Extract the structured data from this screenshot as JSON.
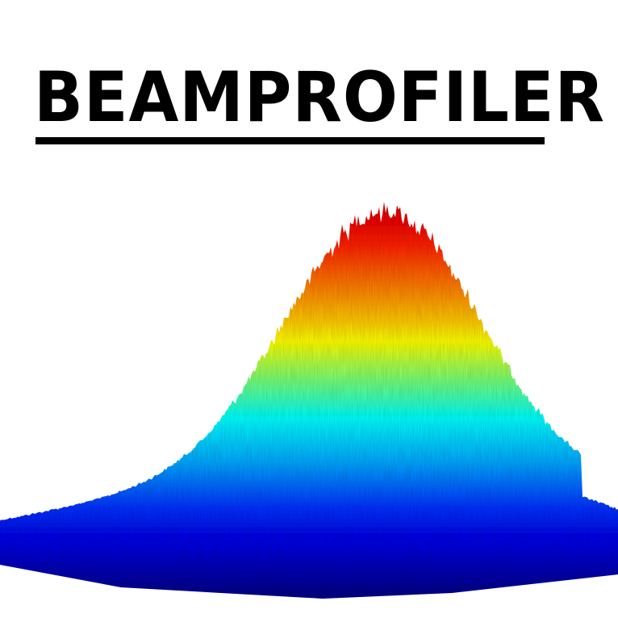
{
  "logo": {
    "text": "BEAMPROFILER",
    "color": "#000000"
  },
  "plot": {
    "kind": "3d-surface-gaussian-beam",
    "colormap": [
      "#00008b",
      "#0000ff",
      "#00aaff",
      "#00ffff",
      "#55ff99",
      "#ffff00",
      "#ff9900",
      "#ff4400",
      "#dd0000"
    ]
  }
}
